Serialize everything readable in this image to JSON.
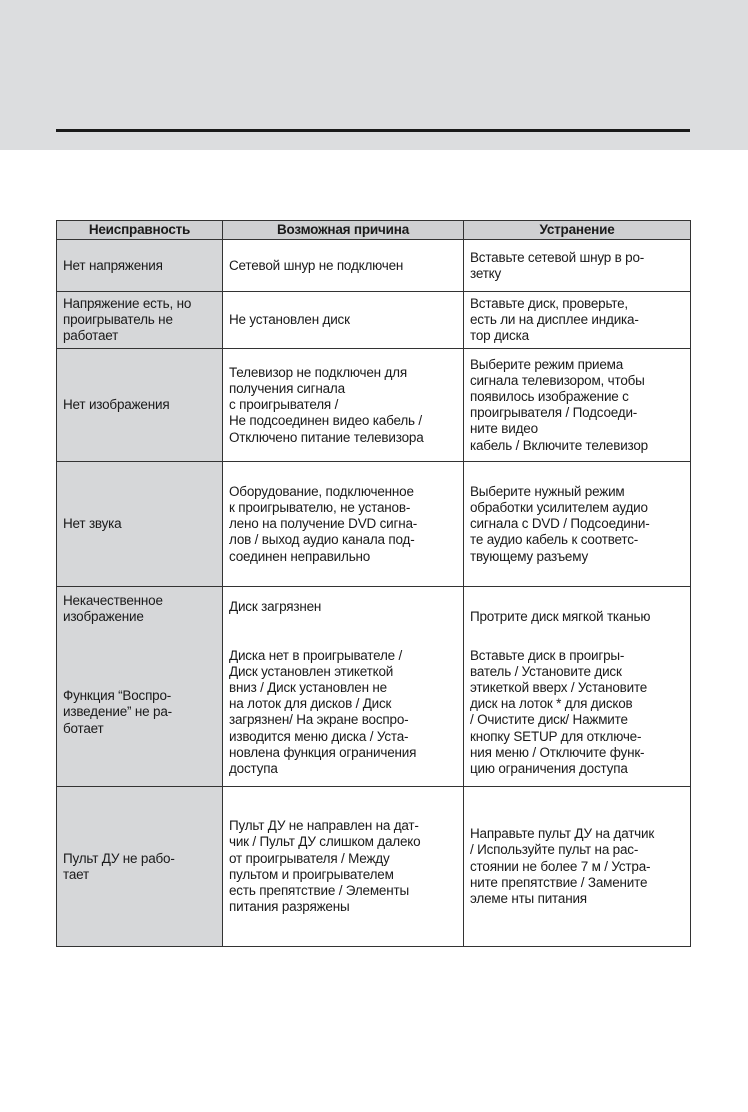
{
  "table": {
    "headers": [
      "Неисправность",
      "Возможная причина",
      "Устранение"
    ],
    "rows": [
      {
        "problem": "Нет напряжения",
        "cause": "Сетевой шнур не подключен",
        "remedy": "Вставьте сетевой шнур в ро-\nзетку"
      },
      {
        "problem": "Напряжение есть, но\nпроигрыватель не\nработает",
        "cause": "Не установлен диск",
        "remedy": "Вставьте диск, проверьте,\nесть ли на дисплее индика-\nтор диска"
      },
      {
        "problem": "Нет изображения",
        "cause": "Телевизор не подключен для\nполучения сигнала\nс проигрывателя /\nНе подсоединен видео кабель /\nОтключено питание телевизора",
        "remedy": "Выберите режим приема\nсигнала телевизором, чтобы\nпоявилось изображение с\nпроигрывателя / Подсоеди-\nните видео\nкабель / Включите телевизор"
      },
      {
        "problem": "Нет звука",
        "cause": "Оборудование, подключенное\nк проигрывателю, не установ-\nлено на получение DVD сигна-\nлов / выход аудио канала под-\nсоединен  неправильно",
        "remedy": "Выберите нужный режим\nобработки усилителем аудио\nсигнала с DVD / Подсоедини-\nте аудио кабель к соответс-\nтвующему разъему"
      },
      {
        "problem": "Некачественное\nизображение",
        "cause": "Диск загрязнен",
        "remedy": "Протрите диск мягкой тканью"
      },
      {
        "problem": "Функция “Воспро-\nизведение” не ра-\nботает",
        "cause": "Диска нет в проигрывателе /\nДиск установлен этикеткой\nвниз / Диск установлен не\nна лоток  для дисков / Диск\nзагрязнен/ На экране воспро-\nизводится меню диска / Уста-\nновлена функция ограничения\nдоступа",
        "remedy": "Вставьте диск в проигры-\nватель / Установите диск\nэтикеткой вверх / Установите\nдиск на лоток * для дисков\n/ Очистите диск/ Нажмите\nкнопку SETUP для отключе-\nния меню / Отключите функ-\nцию ограничения доступа"
      },
      {
        "problem": "Пульт ДУ не рабо-\nтает",
        "cause": "Пульт ДУ не направлен на дат-\nчик / Пульт ДУ слишком далеко\nот проигрывателя / Между\nпультом и проигрывателем\nесть препятствие / Элементы\nпитания разряжены",
        "remedy": "Направьте пульт ДУ на датчик\n/ Используйте пульт на рас-\nстоянии не более 7 м / Устра-\nните препятствие / Замените\nэлеме нты питания"
      }
    ]
  }
}
